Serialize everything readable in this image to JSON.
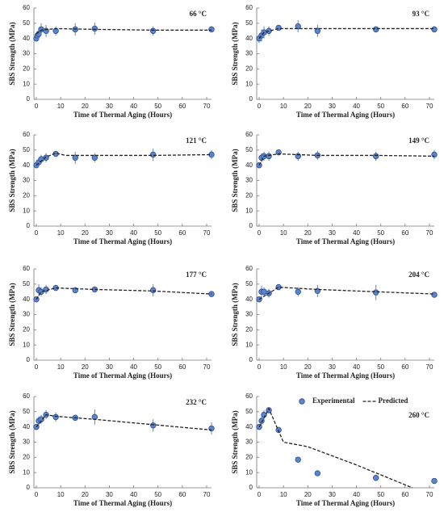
{
  "chart_data": [
    {
      "type": "scatter",
      "annotation": "66 °C",
      "x_label": "Time of Thermal Aging (Hours)",
      "y_label": "SBS Strength (MPa)",
      "xlim": [
        -1,
        72
      ],
      "ylim": [
        0,
        60
      ],
      "xticks": [
        0,
        10,
        20,
        30,
        40,
        50,
        60,
        70
      ],
      "yticks": [
        0,
        10,
        20,
        30,
        40,
        50,
        60
      ],
      "series": [
        {
          "type": "scatter",
          "color": "#5b84cc",
          "x": [
            0,
            0.5,
            1,
            2,
            4,
            8,
            16,
            24,
            48,
            72
          ],
          "values": [
            40,
            42,
            43,
            46,
            45,
            45,
            46,
            46.5,
            45,
            46
          ],
          "errors": [
            2,
            3,
            4,
            4,
            4,
            3,
            4,
            4,
            3,
            2
          ]
        },
        {
          "type": "line",
          "color": "#222222",
          "x": [
            0,
            2,
            8,
            24,
            48,
            72
          ],
          "values": [
            43,
            45.5,
            46.5,
            46,
            45.5,
            45.5
          ]
        }
      ]
    },
    {
      "type": "scatter",
      "annotation": "93 °C",
      "x_label": "Time of Thermal Aging (Hours)",
      "y_label": "SBS Strength (MPa)",
      "xlim": [
        -1,
        72
      ],
      "ylim": [
        0,
        60
      ],
      "xticks": [
        0,
        10,
        20,
        30,
        40,
        50,
        60,
        70
      ],
      "yticks": [
        0,
        10,
        20,
        30,
        40,
        50,
        60
      ],
      "series": [
        {
          "type": "scatter",
          "color": "#5b84cc",
          "x": [
            0,
            1,
            2,
            4,
            8,
            16,
            24,
            48,
            72
          ],
          "values": [
            40,
            42,
            44,
            45,
            47,
            48,
            45,
            46,
            46
          ],
          "errors": [
            3,
            4,
            4,
            3,
            1,
            4,
            4,
            2,
            2
          ]
        },
        {
          "type": "line",
          "color": "#222222",
          "x": [
            0,
            2,
            8,
            24,
            48,
            72
          ],
          "values": [
            40,
            44,
            46.5,
            46.5,
            46.5,
            46.5
          ]
        }
      ]
    },
    {
      "type": "scatter",
      "annotation": "121 °C",
      "x_label": "Time of Thermal Aging (Hours)",
      "y_label": "SBS Strength (MPa)",
      "xlim": [
        -1,
        72
      ],
      "ylim": [
        0,
        60
      ],
      "xticks": [
        0,
        10,
        20,
        30,
        40,
        50,
        60,
        70
      ],
      "yticks": [
        0,
        10,
        20,
        30,
        40,
        50,
        60
      ],
      "series": [
        {
          "type": "scatter",
          "color": "#5b84cc",
          "x": [
            0,
            1,
            2,
            4,
            8,
            16,
            24,
            48,
            72
          ],
          "values": [
            40,
            42,
            44,
            45,
            47.5,
            45,
            45,
            47,
            47
          ],
          "errors": [
            2,
            3,
            3,
            3,
            2,
            4,
            3,
            4,
            3
          ]
        },
        {
          "type": "line",
          "color": "#222222",
          "x": [
            0,
            4,
            8,
            12,
            24,
            48,
            72
          ],
          "values": [
            40,
            45.5,
            48,
            46.5,
            46.5,
            46.5,
            47
          ]
        }
      ]
    },
    {
      "type": "scatter",
      "annotation": "149 °C",
      "x_label": "Time of Thermal Aging (Hours)",
      "y_label": "SBS Strength (MPa)",
      "xlim": [
        -1,
        72
      ],
      "ylim": [
        0,
        60
      ],
      "xticks": [
        0,
        10,
        20,
        30,
        40,
        50,
        60,
        70
      ],
      "yticks": [
        0,
        10,
        20,
        30,
        40,
        50,
        60
      ],
      "series": [
        {
          "type": "scatter",
          "color": "#5b84cc",
          "x": [
            0,
            1,
            2,
            4,
            8,
            16,
            24,
            48,
            72
          ],
          "values": [
            40,
            45,
            46,
            46,
            48.5,
            46,
            46.5,
            46,
            47
          ],
          "errors": [
            2,
            3,
            3,
            3,
            2,
            3,
            3,
            3,
            3
          ]
        },
        {
          "type": "line",
          "color": "#222222",
          "x": [
            0,
            2,
            8,
            24,
            48,
            72
          ],
          "values": [
            40,
            46,
            47.5,
            46.5,
            46.5,
            46
          ]
        }
      ]
    },
    {
      "type": "scatter",
      "annotation": "177 °C",
      "x_label": "Time of Thermal Aging (Hours)",
      "y_label": "SBS Strength (MPa)",
      "xlim": [
        -1,
        72
      ],
      "ylim": [
        0,
        60
      ],
      "xticks": [
        0,
        10,
        20,
        30,
        40,
        50,
        60,
        70
      ],
      "yticks": [
        0,
        10,
        20,
        30,
        40,
        50,
        60
      ],
      "series": [
        {
          "type": "scatter",
          "color": "#5b84cc",
          "x": [
            0,
            1,
            2,
            4,
            8,
            16,
            24,
            48,
            72
          ],
          "values": [
            40,
            46,
            45,
            46.5,
            47.5,
            46,
            46.5,
            46,
            43.5
          ],
          "errors": [
            2,
            4,
            3,
            3,
            2,
            2,
            2,
            4,
            2
          ]
        },
        {
          "type": "line",
          "color": "#222222",
          "x": [
            0,
            2,
            8,
            24,
            48,
            72
          ],
          "values": [
            40,
            45,
            47.5,
            46.5,
            45.5,
            43.5
          ]
        }
      ]
    },
    {
      "type": "scatter",
      "annotation": "204 °C",
      "x_label": "Time of Thermal Aging (Hours)",
      "y_label": "SBS Strength (MPa)",
      "xlim": [
        -1,
        72
      ],
      "ylim": [
        0,
        60
      ],
      "xticks": [
        0,
        10,
        20,
        30,
        40,
        50,
        60,
        70
      ],
      "yticks": [
        0,
        10,
        20,
        30,
        40,
        50,
        60
      ],
      "series": [
        {
          "type": "scatter",
          "color": "#5b84cc",
          "x": [
            0,
            1,
            2,
            4,
            8,
            16,
            24,
            48,
            72
          ],
          "values": [
            40,
            45,
            45,
            44,
            48,
            45,
            45.5,
            44.5,
            43
          ],
          "errors": [
            2,
            4,
            3,
            3,
            2,
            3,
            4,
            5,
            2
          ]
        },
        {
          "type": "line",
          "color": "#222222",
          "x": [
            0,
            8,
            24,
            48,
            72
          ],
          "values": [
            40,
            48,
            46.5,
            45,
            43.5
          ]
        }
      ]
    },
    {
      "type": "scatter",
      "annotation": "232 °C",
      "x_label": "Time of Thermal Aging (Hours)",
      "y_label": "SBS Strength (MPa)",
      "xlim": [
        -1,
        72
      ],
      "ylim": [
        0,
        60
      ],
      "xticks": [
        0,
        10,
        20,
        30,
        40,
        50,
        60,
        70
      ],
      "yticks": [
        0,
        10,
        20,
        30,
        40,
        50,
        60
      ],
      "series": [
        {
          "type": "scatter",
          "color": "#5b84cc",
          "x": [
            0,
            1,
            2,
            4,
            8,
            16,
            24,
            48,
            72
          ],
          "values": [
            40,
            44,
            45,
            48,
            46.5,
            46,
            46.5,
            41,
            39
          ],
          "errors": [
            2,
            3,
            3,
            3,
            3,
            2,
            5,
            4,
            4
          ]
        },
        {
          "type": "line",
          "color": "#222222",
          "x": [
            0,
            4,
            8,
            24,
            48,
            72
          ],
          "values": [
            40,
            48,
            47,
            45,
            41.5,
            38
          ]
        }
      ]
    },
    {
      "type": "scatter",
      "annotation": "260 °C",
      "x_label": "Time of Thermal Aging (Hours)",
      "y_label": "SBS Strength (MPa)",
      "xlim": [
        -1,
        72
      ],
      "ylim": [
        0,
        60
      ],
      "xticks": [
        0,
        10,
        20,
        30,
        40,
        50,
        60,
        70
      ],
      "yticks": [
        0,
        10,
        20,
        30,
        40,
        50,
        60
      ],
      "legend": "upper center",
      "series": [
        {
          "type": "scatter",
          "name": "Experimental",
          "color": "#5b84cc",
          "x": [
            0,
            1,
            2,
            4,
            8,
            16,
            24,
            48,
            72
          ],
          "values": [
            40,
            44,
            48,
            51,
            38,
            18.5,
            9.5,
            6.5,
            4.5
          ],
          "errors": [
            2,
            3,
            3,
            2,
            2,
            1,
            1,
            2,
            1
          ]
        },
        {
          "type": "line",
          "name": "Predicted",
          "color": "#222222",
          "x": [
            0,
            4,
            10,
            20,
            40,
            63
          ],
          "values": [
            40,
            52,
            30,
            27,
            15,
            0
          ]
        }
      ]
    }
  ]
}
